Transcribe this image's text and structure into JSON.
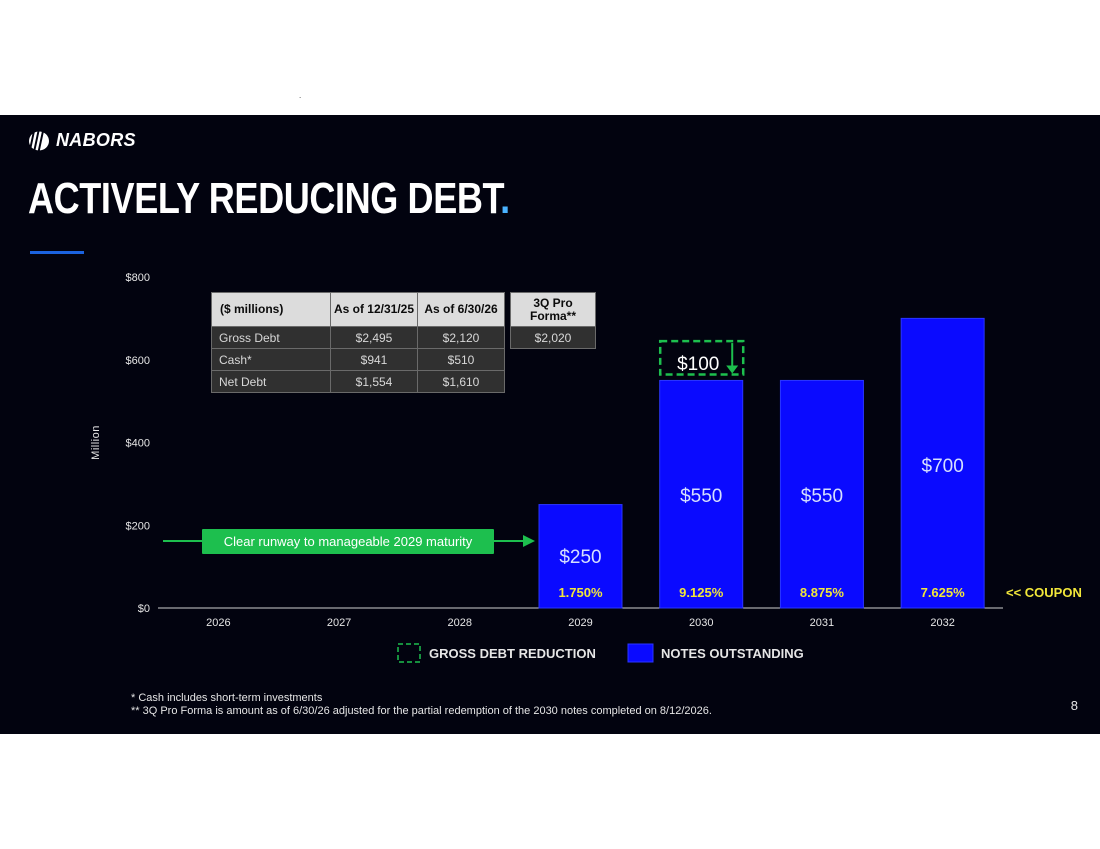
{
  "tiny_mark": ".",
  "brand": {
    "name": "NABORS"
  },
  "title": {
    "text": "ACTIVELY REDUCING DEBT",
    "dot": "."
  },
  "colors": {
    "background": "#02030f",
    "bar": "#0a0aff",
    "accent": "#4ab3ff",
    "green": "#1dbf4e",
    "coupon": "#f2e73a"
  },
  "table": {
    "headers": [
      "($ millions)",
      "As of 12/31/25",
      "As of 6/30/26",
      "3Q Pro Forma**"
    ],
    "rows": [
      {
        "label": "Gross Debt",
        "values": [
          "$2,495",
          "$2,120",
          "$2,020"
        ]
      },
      {
        "label": "Cash*",
        "values": [
          "$941",
          "$510"
        ]
      },
      {
        "label": "Net Debt",
        "values": [
          "$1,554",
          "$1,610"
        ]
      }
    ]
  },
  "chart_data": {
    "type": "bar",
    "categories": [
      "2026",
      "2027",
      "2028",
      "2029",
      "2030",
      "2031",
      "2032"
    ],
    "series": [
      {
        "name": "NOTES OUTSTANDING",
        "values": [
          0,
          0,
          0,
          250,
          550,
          550,
          700
        ]
      },
      {
        "name": "GROSS DEBT REDUCTION",
        "values": [
          0,
          0,
          0,
          0,
          100,
          0,
          0
        ]
      }
    ],
    "bar_labels": [
      "",
      "",
      "",
      "$250",
      "$550",
      "$550",
      "$700"
    ],
    "reduction_label": "$100",
    "coupons": [
      "",
      "",
      "",
      "1.750%",
      "9.125%",
      "8.875%",
      "7.625%"
    ],
    "coupon_label": "<< COUPON",
    "ylabel": "Million",
    "yticks": [
      "$0",
      "$200",
      "$400",
      "$600",
      "$800"
    ],
    "ylim": [
      0,
      800
    ],
    "annotation": "Clear runway to manageable 2029 maturity",
    "legend": [
      "GROSS DEBT REDUCTION",
      "NOTES OUTSTANDING"
    ],
    "grid": false
  },
  "footnotes": [
    "* Cash includes short-term investments",
    "** 3Q Pro Forma is amount as of 6/30/26 adjusted for the partial redemption of the 2030 notes completed on 8/12/2026."
  ],
  "page_number": "8"
}
